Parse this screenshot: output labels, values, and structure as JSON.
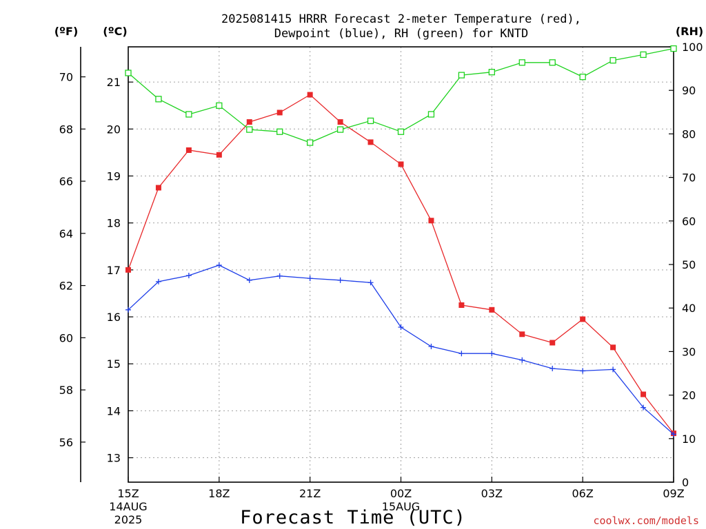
{
  "chart_data": {
    "type": "line",
    "title_line1": "2025081415 HRRR Forecast 2-meter Temperature (red),",
    "title_line2": "Dewpoint (blue), RH (green) for KNTD",
    "xlabel": "Forecast Time (UTC)",
    "credit": "coolwx.com/models",
    "units": {
      "fahrenheit": "(ºF)",
      "celsius": "(ºC)",
      "rh": "(RH)"
    },
    "x_ticks": [
      {
        "hour": 0,
        "label": "15Z",
        "sub1": "14AUG",
        "sub2": "2025"
      },
      {
        "hour": 3,
        "label": "18Z"
      },
      {
        "hour": 6,
        "label": "21Z"
      },
      {
        "hour": 9,
        "label": "00Z",
        "sub1": "15AUG"
      },
      {
        "hour": 12,
        "label": "03Z"
      },
      {
        "hour": 15,
        "label": "06Z"
      },
      {
        "hour": 18,
        "label": "09Z"
      }
    ],
    "x_range_hours": [
      0,
      18
    ],
    "celsius_ticks": [
      13,
      14,
      15,
      16,
      17,
      18,
      19,
      20,
      21
    ],
    "celsius_range": [
      12.48,
      21.75
    ],
    "fahrenheit_ticks": [
      56,
      58,
      60,
      62,
      64,
      66,
      68,
      70
    ],
    "rh_ticks": [
      0,
      10,
      20,
      30,
      40,
      50,
      60,
      70,
      80,
      90,
      100
    ],
    "rh_range": [
      0,
      100
    ],
    "colors": {
      "temperature": "#e8282a",
      "dewpoint": "#1e3ee8",
      "rh": "#1ed21e",
      "grid": "#a0a0a0"
    },
    "series": [
      {
        "name": "Temperature",
        "axis": "celsius",
        "marker": "square-filled",
        "values": [
          17.0,
          18.75,
          19.55,
          19.45,
          20.15,
          20.35,
          20.73,
          20.15,
          19.72,
          19.25,
          18.05,
          16.25,
          16.15,
          15.63,
          15.45,
          15.95,
          15.35,
          14.35,
          13.52
        ]
      },
      {
        "name": "Dewpoint",
        "axis": "celsius",
        "marker": "plus",
        "values": [
          16.15,
          16.75,
          16.88,
          17.1,
          16.78,
          16.87,
          16.82,
          16.78,
          16.73,
          15.78,
          15.37,
          15.22,
          15.22,
          15.08,
          14.9,
          14.85,
          14.88,
          14.07,
          13.5
        ]
      },
      {
        "name": "RH",
        "axis": "rh",
        "marker": "square-open",
        "values": [
          94,
          88,
          84.5,
          86.5,
          81,
          80.5,
          78,
          81,
          83,
          80.5,
          84.5,
          93.5,
          94.2,
          96.4,
          96.4,
          93.1,
          96.9,
          98.2,
          99.6
        ]
      }
    ],
    "grid": true
  }
}
